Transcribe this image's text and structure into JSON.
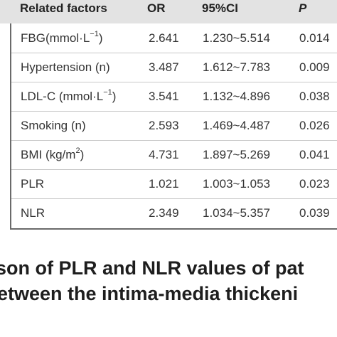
{
  "table": {
    "headers": [
      "Related factors",
      "OR",
      "95%CI",
      "P"
    ],
    "rows": [
      {
        "factor": "FBG(mmol·L",
        "sup": "−1",
        "suffix": ")",
        "or": "2.641",
        "ci": "1.230~5.514",
        "p": "0.014"
      },
      {
        "factor": "Hypertension (n)",
        "sup": "",
        "suffix": "",
        "or": "3.487",
        "ci": "1.612~7.783",
        "p": "0.009"
      },
      {
        "factor": "LDL-C (mmol·L",
        "sup": "−1",
        "suffix": ")",
        "or": "3.541",
        "ci": "1.132~4.896",
        "p": "0.038"
      },
      {
        "factor": "Smoking (n)",
        "sup": "",
        "suffix": "",
        "or": "2.593",
        "ci": "1.469~4.487",
        "p": "0.026"
      },
      {
        "factor": "BMI (kg/m",
        "sup": "2",
        "suffix": ")",
        "or": "4.731",
        "ci": "1.897~5.269",
        "p": "0.041"
      },
      {
        "factor": "PLR",
        "sup": "",
        "suffix": "",
        "or": "1.021",
        "ci": "1.003~1.053",
        "p": "0.023"
      },
      {
        "factor": "NLR",
        "sup": "",
        "suffix": "",
        "or": "2.349",
        "ci": "1.034~5.357",
        "p": "0.039"
      }
    ]
  },
  "caption": {
    "line1": "son of PLR and NLR values of pat",
    "line2": "etween the intima-media thickeni"
  }
}
